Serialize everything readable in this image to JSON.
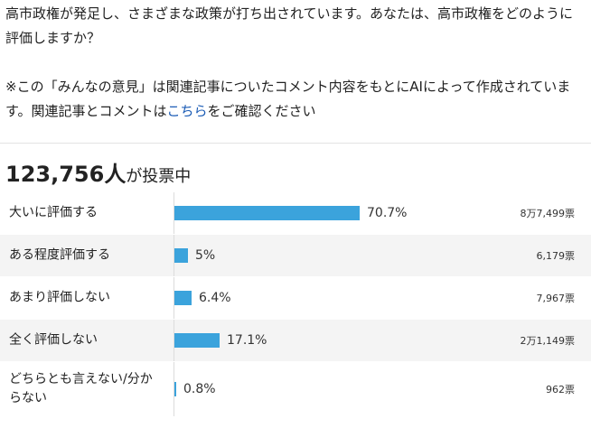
{
  "intro": {
    "question": "高市政権が発足し、さまざまな政策が打ち出されています。あなたは、高市政権をどのように評価しますか？",
    "note_before_link": "※この「みんなの意見」は関連記事についたコメント内容をもとにAIによって作成されています。関連記事とコメントは",
    "note_link": "こちら",
    "note_after_link": "をご確認ください"
  },
  "total": {
    "count": "123,756人",
    "suffix": "が投票中"
  },
  "colors": {
    "bar": "#3ba3dc",
    "link": "#1a5bb5",
    "alt_row_bg": "#f4f4f4"
  },
  "options": [
    {
      "label": "大いに評価する",
      "percent": 70.7,
      "percent_text": "70.7%",
      "votes": "8万7,499票"
    },
    {
      "label": "ある程度評価する",
      "percent": 5,
      "percent_text": "5%",
      "votes": "6,179票"
    },
    {
      "label": "あまり評価しない",
      "percent": 6.4,
      "percent_text": "6.4%",
      "votes": "7,967票"
    },
    {
      "label": "全く評価しない",
      "percent": 17.1,
      "percent_text": "17.1%",
      "votes": "2万1,149票"
    },
    {
      "label": "どちらとも言えない/分からない",
      "percent": 0.8,
      "percent_text": "0.8%",
      "votes": "962票"
    }
  ]
}
